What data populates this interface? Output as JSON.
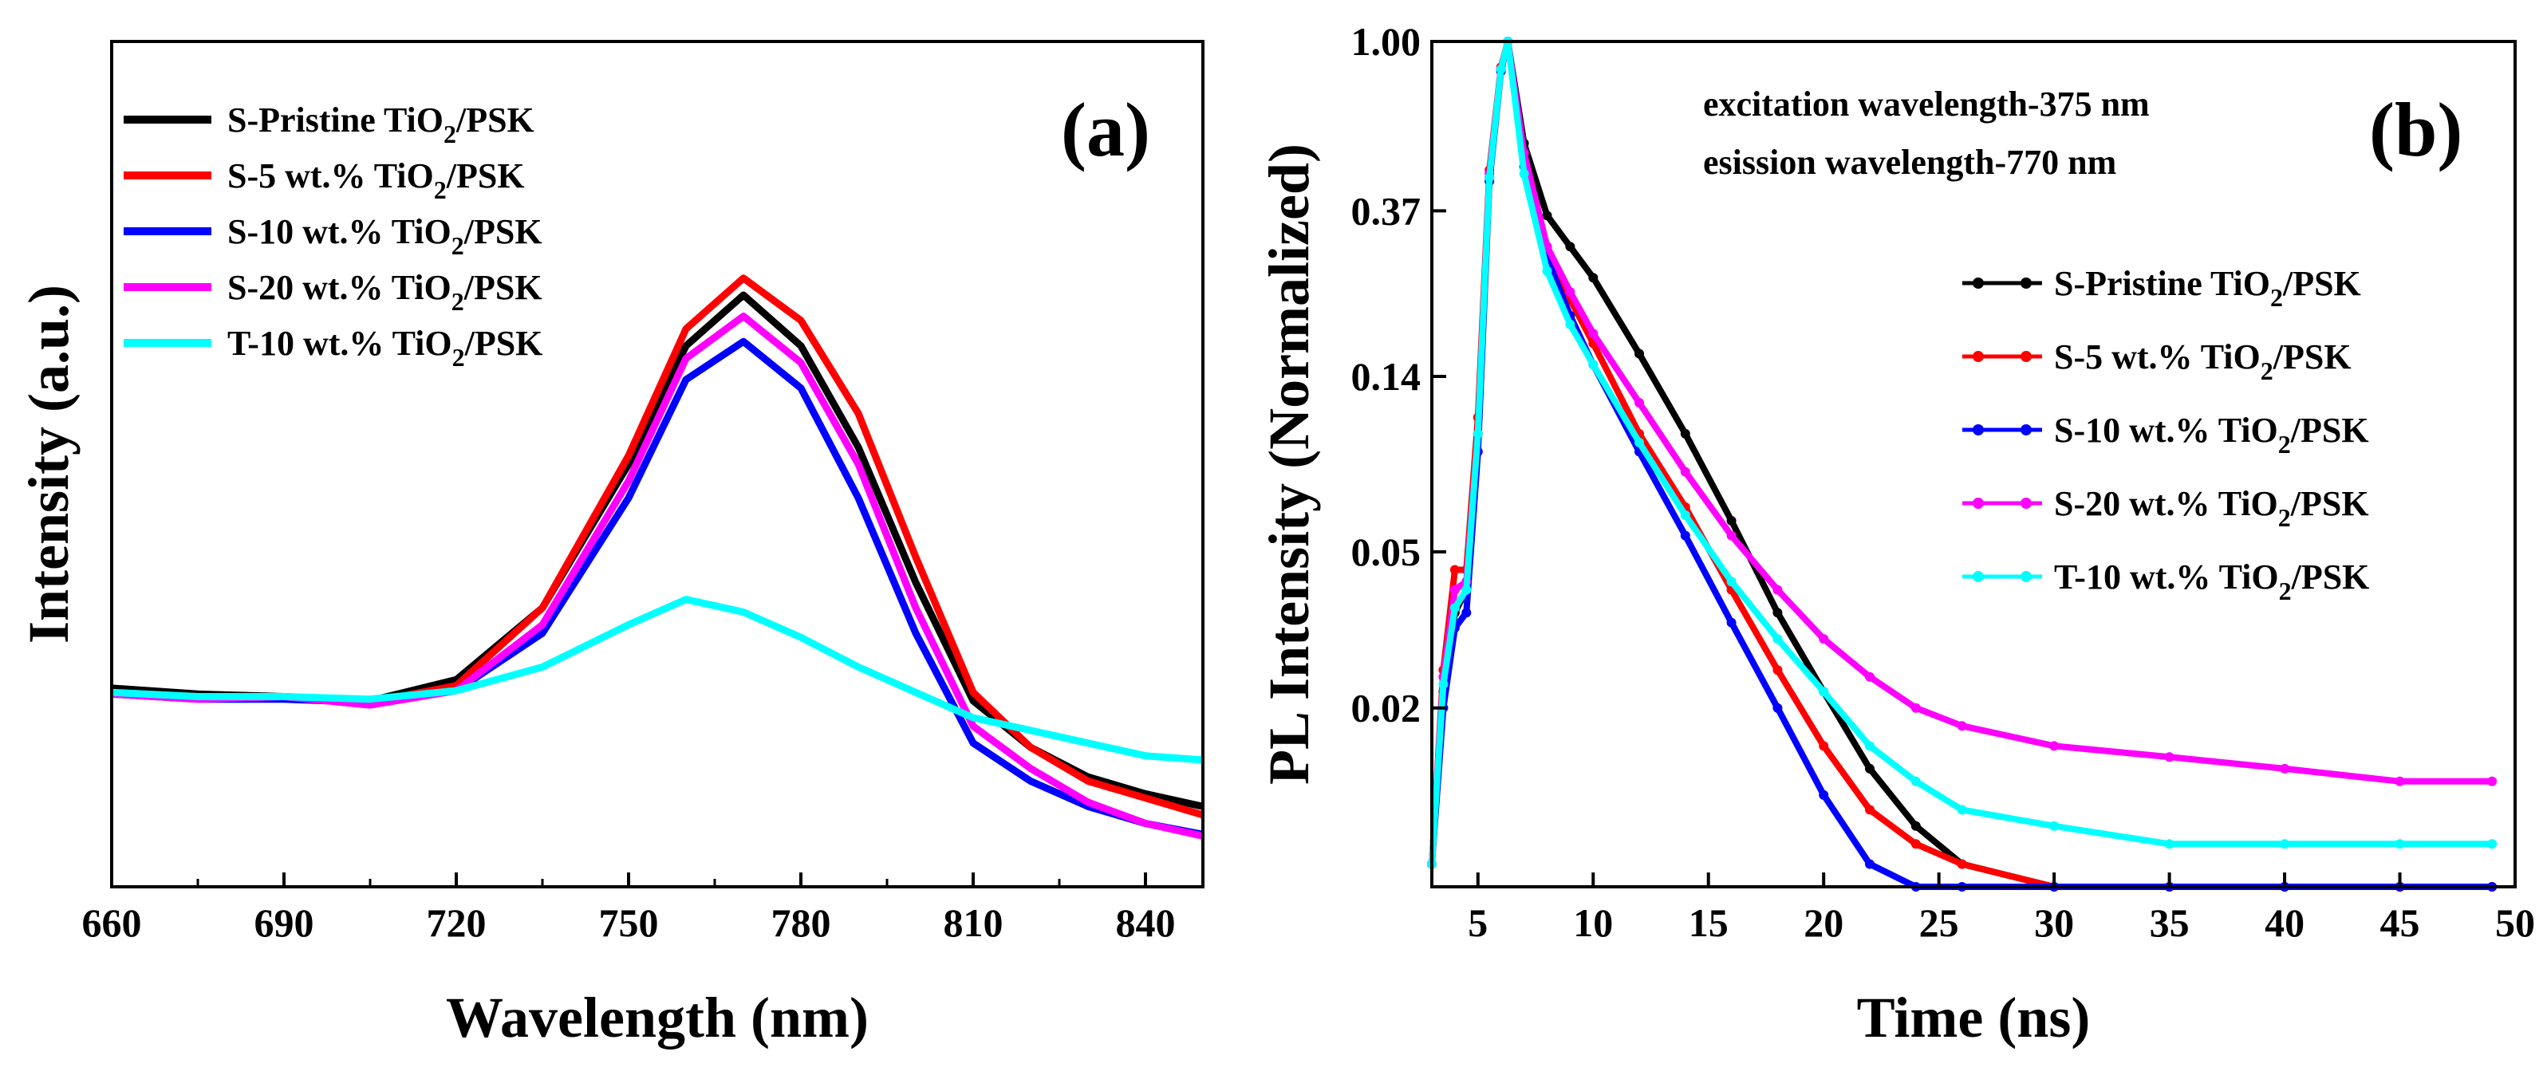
{
  "chart_data": [
    {
      "panel": "(a)",
      "type": "line",
      "xlabel": "Wavelength (nm)",
      "ylabel": "Intensity (a.u.)",
      "xlim": [
        660,
        850
      ],
      "ylim": [
        0,
        1
      ],
      "xticks": [
        660,
        690,
        720,
        750,
        780,
        810,
        840
      ],
      "xtick_labels": [
        "660",
        "690",
        "720",
        "750",
        "780",
        "810",
        "840"
      ],
      "yticks": [],
      "legend_position": "top-left",
      "x": [
        660,
        675,
        690,
        705,
        720,
        735,
        750,
        760,
        770,
        780,
        790,
        800,
        810,
        820,
        830,
        840,
        850
      ],
      "series": [
        {
          "name": "S-Pristine TiO2/PSK",
          "name_main": "S-Pristine TiO",
          "name_sub": "2",
          "name_tail": "/PSK",
          "color": "#000000",
          "values": [
            0.235,
            0.228,
            0.225,
            0.22,
            0.245,
            0.33,
            0.5,
            0.64,
            0.7,
            0.64,
            0.52,
            0.36,
            0.22,
            0.165,
            0.13,
            0.11,
            0.095
          ]
        },
        {
          "name": "S-5 wt.% TiO2/PSK",
          "name_main": "S-5 wt.% TiO",
          "name_sub": "2",
          "name_tail": "/PSK",
          "color": "#ff0000",
          "values": [
            0.23,
            0.225,
            0.225,
            0.218,
            0.238,
            0.33,
            0.51,
            0.66,
            0.72,
            0.67,
            0.56,
            0.39,
            0.23,
            0.165,
            0.125,
            0.105,
            0.085
          ]
        },
        {
          "name": "S-10 wt.% TiO2/PSK",
          "name_main": "S-10 wt.% TiO",
          "name_sub": "2",
          "name_tail": "/PSK",
          "color": "#0000ff",
          "values": [
            0.228,
            0.222,
            0.222,
            0.218,
            0.232,
            0.3,
            0.46,
            0.6,
            0.645,
            0.59,
            0.46,
            0.3,
            0.17,
            0.125,
            0.095,
            0.075,
            0.062
          ]
        },
        {
          "name": "S-20 wt.% TiO2/PSK",
          "name_main": "S-20 wt.% TiO",
          "name_sub": "2",
          "name_tail": "/PSK",
          "color": "#ff00ff",
          "values": [
            0.228,
            0.222,
            0.225,
            0.215,
            0.232,
            0.31,
            0.48,
            0.625,
            0.675,
            0.62,
            0.5,
            0.33,
            0.19,
            0.14,
            0.1,
            0.075,
            0.06
          ]
        },
        {
          "name": "T-10 wt.% TiO2/PSK",
          "name_main": "T-10 wt.% TiO",
          "name_sub": "2",
          "name_tail": "/PSK",
          "color": "#00ffff",
          "values": [
            0.23,
            0.225,
            0.225,
            0.222,
            0.232,
            0.26,
            0.31,
            0.34,
            0.325,
            0.295,
            0.26,
            0.23,
            0.2,
            0.185,
            0.17,
            0.155,
            0.15
          ]
        }
      ]
    },
    {
      "panel": "(b)",
      "type": "line",
      "xlabel": "Time (ns)",
      "ylabel": "PL Intensity (Normalized)",
      "xlim": [
        3,
        50
      ],
      "ylim": [
        0.007,
        1.0
      ],
      "yscale": "log",
      "xticks": [
        5,
        10,
        15,
        20,
        25,
        30,
        35,
        40,
        45,
        50
      ],
      "xtick_labels": [
        "5",
        "10",
        "15",
        "20",
        "25",
        "30",
        "35",
        "40",
        "45",
        "50"
      ],
      "yticks": [
        1.0,
        0.37,
        0.14,
        0.05,
        0.02
      ],
      "ytick_labels": [
        "1.00",
        "0.37",
        "0.14",
        "0.05",
        "0.02"
      ],
      "annotations": [
        "excitation wavelength-375 nm",
        "esission wavelength-770 nm"
      ],
      "legend_position": "right",
      "x": [
        3,
        3.5,
        4,
        4.5,
        5,
        5.5,
        6,
        6.3,
        7,
        8,
        9,
        10,
        12,
        14,
        16,
        18,
        20,
        22,
        24,
        26,
        30,
        35,
        40,
        45,
        49
      ],
      "series": [
        {
          "name": "S-Pristine TiO2/PSK",
          "name_main": "S-Pristine TiO",
          "name_sub": "2",
          "name_tail": "/PSK",
          "color": "#000000",
          "values": [
            0.008,
            0.022,
            0.035,
            0.04,
            0.1,
            0.45,
            0.85,
            1.0,
            0.55,
            0.36,
            0.3,
            0.25,
            0.16,
            0.1,
            0.06,
            0.035,
            0.022,
            0.014,
            0.01,
            0.008,
            0.007,
            0.007,
            0.007,
            0.007,
            0.007
          ]
        },
        {
          "name": "S-5 wt.% TiO2/PSK",
          "name_main": "S-5 wt.% TiO",
          "name_sub": "2",
          "name_tail": "/PSK",
          "color": "#ff0000",
          "values": [
            0.008,
            0.025,
            0.045,
            0.045,
            0.11,
            0.47,
            0.86,
            1.0,
            0.5,
            0.3,
            0.22,
            0.17,
            0.1,
            0.065,
            0.04,
            0.025,
            0.016,
            0.011,
            0.009,
            0.008,
            0.007,
            0.007,
            0.007,
            0.007,
            0.007
          ]
        },
        {
          "name": "S-10 wt.% TiO2/PSK",
          "name_main": "S-10 wt.% TiO",
          "name_sub": "2",
          "name_tail": "/PSK",
          "color": "#0000ff",
          "values": [
            0.008,
            0.02,
            0.032,
            0.035,
            0.09,
            0.44,
            0.84,
            1.0,
            0.48,
            0.28,
            0.2,
            0.15,
            0.09,
            0.055,
            0.033,
            0.02,
            0.012,
            0.008,
            0.007,
            0.007,
            0.007,
            0.007,
            0.007,
            0.007,
            0.007
          ]
        },
        {
          "name": "S-20 wt.% TiO2/PSK",
          "name_main": "S-20 wt.% TiO",
          "name_sub": "2",
          "name_tail": "/PSK",
          "color": "#ff00ff",
          "values": [
            0.008,
            0.024,
            0.04,
            0.042,
            0.1,
            0.46,
            0.85,
            1.0,
            0.52,
            0.3,
            0.23,
            0.18,
            0.12,
            0.08,
            0.055,
            0.04,
            0.03,
            0.024,
            0.02,
            0.018,
            0.016,
            0.015,
            0.014,
            0.013,
            0.013
          ]
        },
        {
          "name": "T-10 wt.% TiO2/PSK",
          "name_main": "T-10 wt.% TiO",
          "name_sub": "2",
          "name_tail": "/PSK",
          "color": "#00ffff",
          "values": [
            0.008,
            0.023,
            0.036,
            0.04,
            0.1,
            0.45,
            0.85,
            1.0,
            0.46,
            0.26,
            0.19,
            0.15,
            0.095,
            0.062,
            0.042,
            0.03,
            0.022,
            0.016,
            0.013,
            0.011,
            0.01,
            0.009,
            0.009,
            0.009,
            0.009
          ]
        }
      ]
    }
  ],
  "panels": {
    "a": {
      "label": "(a)"
    },
    "b": {
      "label": "(b)",
      "note_line1": "excitation wavelength-375 nm",
      "note_line2": "esission wavelength-770 nm"
    }
  }
}
